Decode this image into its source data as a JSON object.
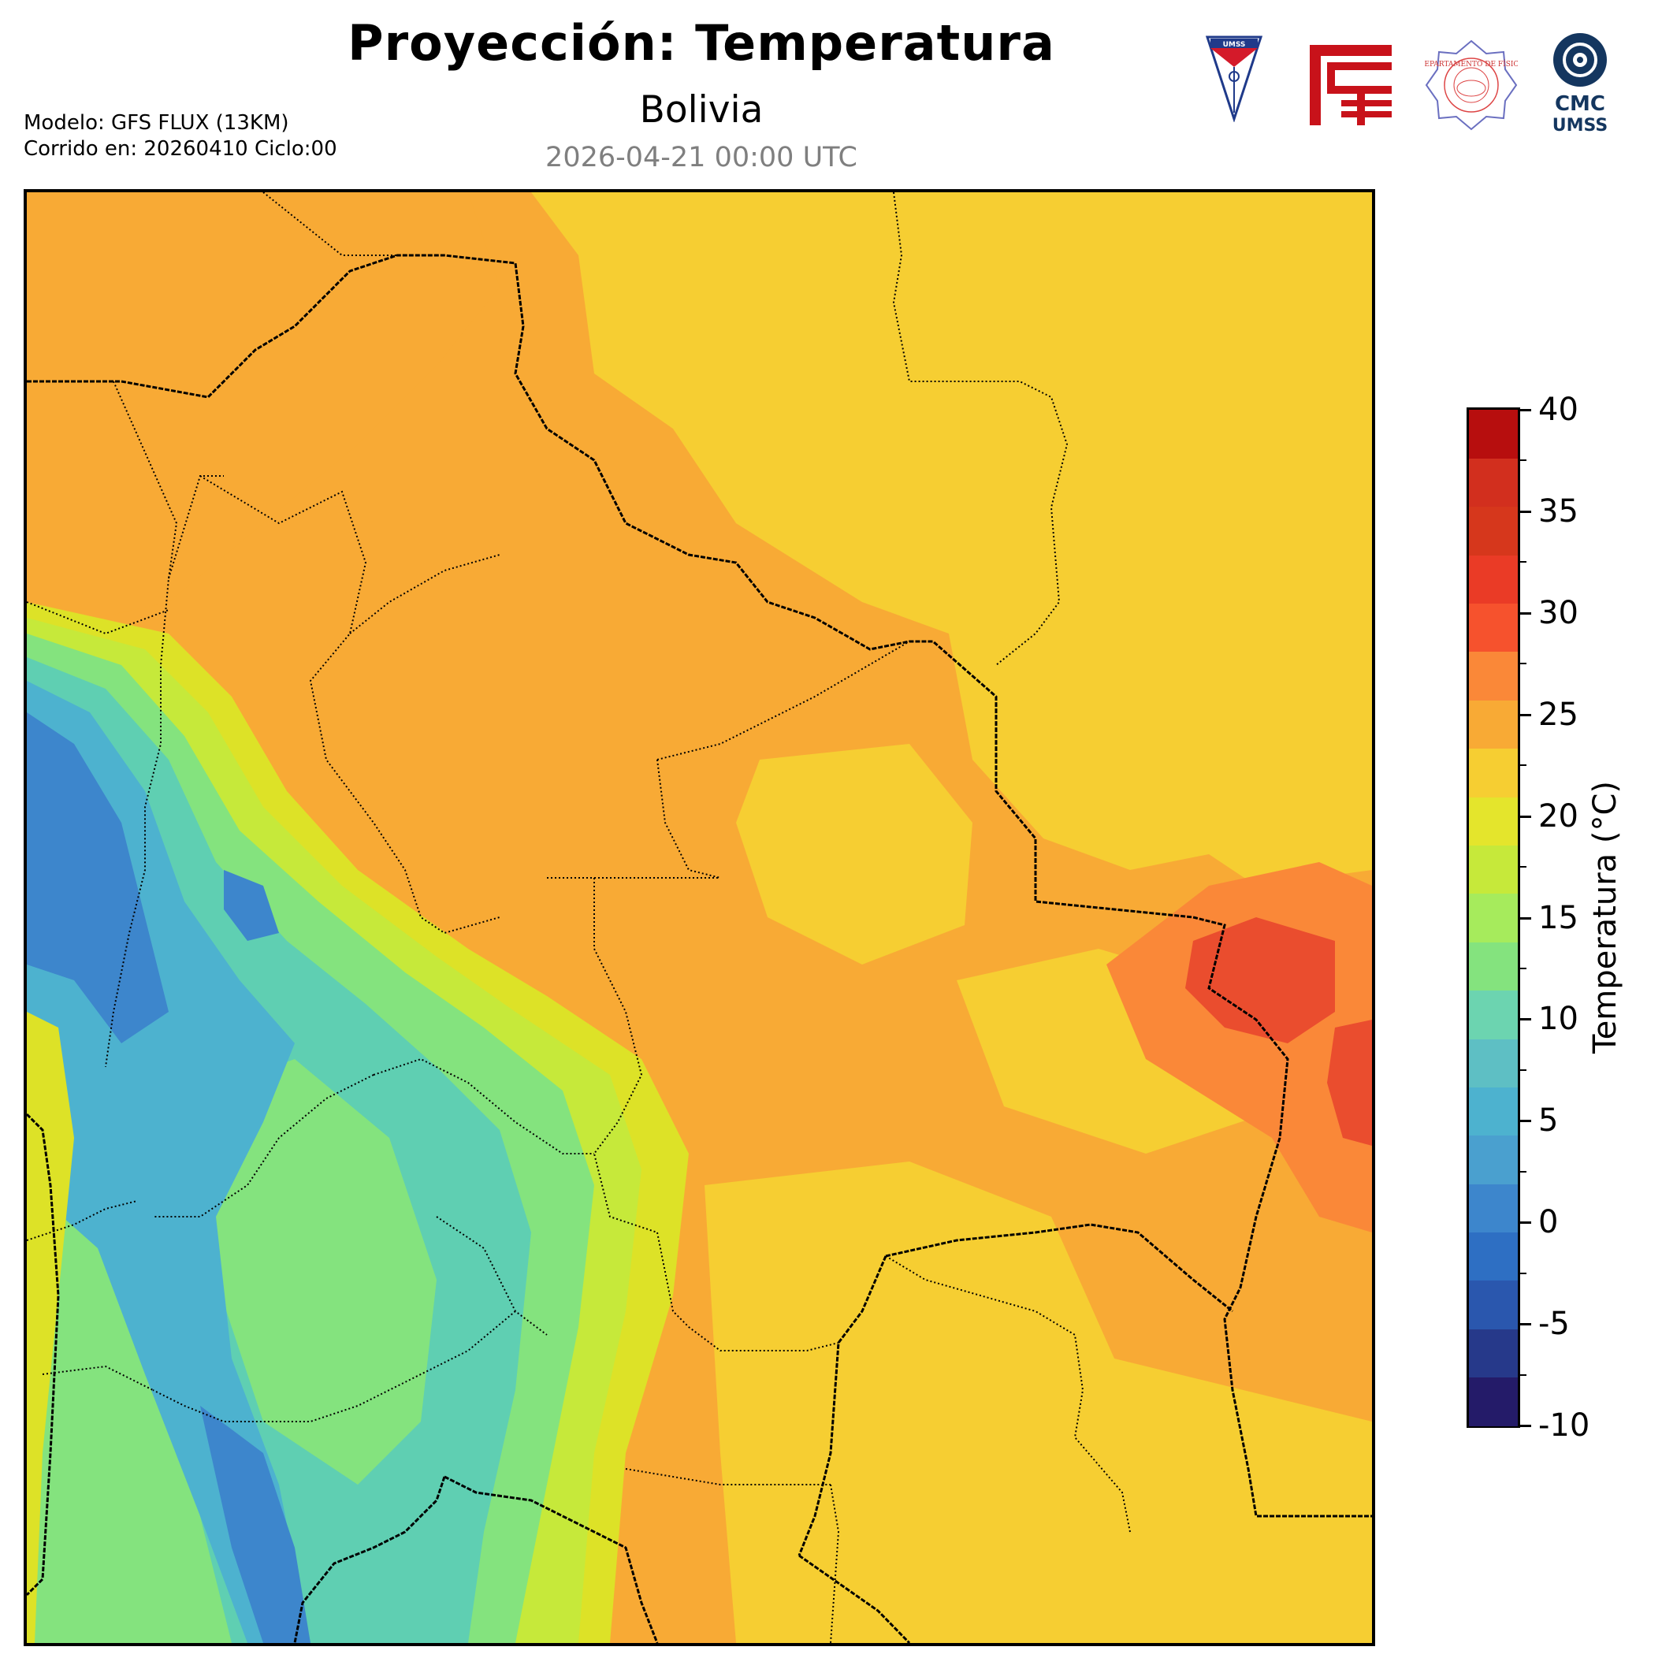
{
  "header": {
    "title": "Proyección: Temperatura",
    "subtitle": "Bolivia",
    "valid_time": "2026-04-21 00:00 UTC",
    "model_line": "Modelo: GFS FLUX (13KM)",
    "run_line": "Corrido en: 20260410 Ciclo:00"
  },
  "logos": [
    {
      "name": "umss-shield-logo",
      "text": "UMSS"
    },
    {
      "name": "fcyt-red-logo"
    },
    {
      "name": "departamento-fisica-logo",
      "text": "DEPARTAMENTO DE FÍSICA"
    },
    {
      "name": "cmc-umss-logo",
      "text_top": "CMC",
      "text_bottom": "UMSS"
    }
  ],
  "map": {
    "region": "Bolivia",
    "variable": "Temperatura",
    "colors": {
      "warm_background": "#f6ce32",
      "orange": "#f8aa35",
      "dark_orange": "#fa8838",
      "red": "#ea4d2e",
      "yellow_green": "#dde227",
      "lime": "#c6e93a",
      "light_green": "#84e37e",
      "teal": "#5fcfb2",
      "light_blue": "#4db2cf",
      "blue": "#3d86cc",
      "border": "#000000"
    }
  },
  "colorbar": {
    "label": "Temperatura (°C)",
    "min": -10,
    "max": 40,
    "step": 2.5,
    "tick_labels": [
      "40",
      "35",
      "30",
      "25",
      "20",
      "15",
      "10",
      "5",
      "0",
      "-5",
      "-10"
    ],
    "tick_values": [
      40,
      35,
      30,
      25,
      20,
      15,
      10,
      5,
      0,
      -5,
      -10
    ],
    "colors_bottom_to_top": [
      "#241b69",
      "#26398a",
      "#2a57ae",
      "#2e6fc3",
      "#3d86cc",
      "#4aa0cf",
      "#4db2cf",
      "#5ebfc4",
      "#6cd4b0",
      "#84e37e",
      "#a6eb5c",
      "#c6e93a",
      "#e4e52c",
      "#f6ce32",
      "#f8aa35",
      "#fa8838",
      "#f6522d",
      "#ea3b26",
      "#d6371c",
      "#d22f1e",
      "#b70e0e"
    ]
  }
}
